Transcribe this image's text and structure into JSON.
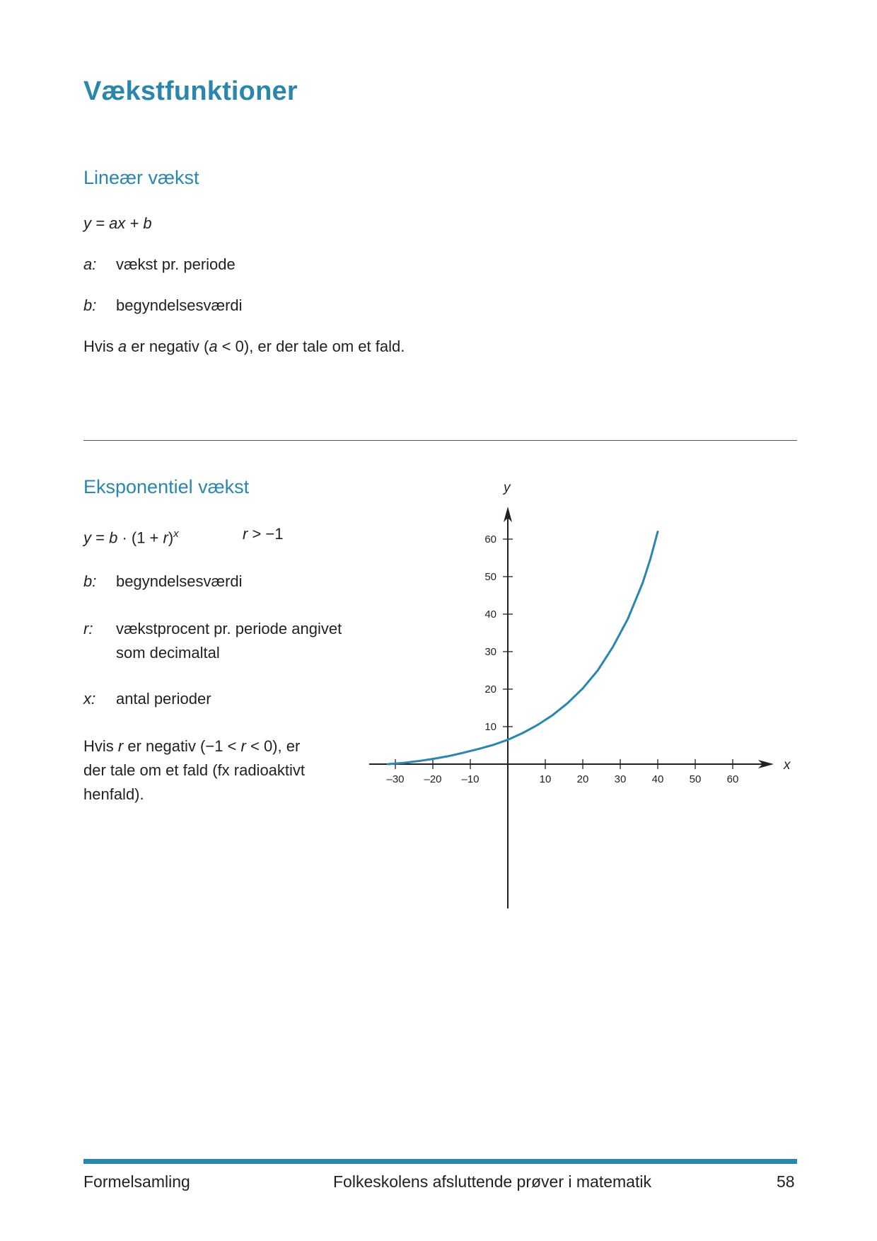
{
  "page": {
    "title": "Vækstfunktioner",
    "footer_left": "Formelsamling",
    "footer_center": "Folkeskolens afsluttende prøver i matematik",
    "footer_page": "58",
    "accent_color": "#2a86ad"
  },
  "linear": {
    "heading": "Lineær vækst",
    "formula": "y = ax + b",
    "defs": [
      {
        "term": "a:",
        "desc": "vækst pr. periode"
      },
      {
        "term": "b:",
        "desc": "begyndelsesværdi"
      }
    ],
    "note": {
      "pre": "Hvis ",
      "var": "a",
      "mid": " er negativ (",
      "var2": "a",
      "post": " < 0), er der tale om et fald."
    }
  },
  "exponential": {
    "heading": "Eksponentiel vækst",
    "formula": {
      "y": "y",
      "eq": " = ",
      "b": "b",
      "dot": " · (1 + ",
      "r": "r",
      "close": ")",
      "exp": "x",
      "cond_var": "r",
      "cond": " > −1"
    },
    "defs": [
      {
        "term": "b:",
        "desc": "begyndelsesværdi"
      },
      {
        "term": "r:",
        "desc_line1": "vækstprocent pr. periode angivet",
        "desc_line2": "som decimaltal"
      },
      {
        "term": "x:",
        "desc": "antal perioder"
      }
    ],
    "note": {
      "line1_pre": "Hvis ",
      "line1_var": "r",
      "line1_mid": " er negativ (−1 < ",
      "line1_var2": "r",
      "line1_post": " < 0), er",
      "line2": "der tale om et fald (fx radioaktivt",
      "line3": "henfald)."
    }
  },
  "chart_data": {
    "type": "line",
    "x_axis_label": "x",
    "y_axis_label": "y",
    "x_ticks": [
      -30,
      -20,
      -10,
      10,
      20,
      30,
      40,
      50,
      60
    ],
    "x_tick_labels": [
      "–30",
      "–20",
      "–10",
      "10",
      "20",
      "30",
      "40",
      "50",
      "60"
    ],
    "y_ticks": [
      10,
      20,
      30,
      40,
      50,
      60
    ],
    "y_tick_labels": [
      "10",
      "20",
      "30",
      "40",
      "50",
      "60"
    ],
    "xlim": [
      -37,
      70
    ],
    "ylim": [
      -38,
      70
    ],
    "series": [
      {
        "color": "#2a86ad",
        "x": [
          -32,
          -28,
          -24,
          -20,
          -16,
          -12,
          -8,
          -4,
          0,
          4,
          8,
          12,
          16,
          20,
          24,
          28,
          32,
          36,
          38,
          40
        ],
        "y": [
          0,
          0.3,
          0.8,
          1.4,
          2.1,
          3.0,
          4.0,
          5.1,
          6.5,
          8.3,
          10.5,
          13.1,
          16.3,
          20.2,
          25.0,
          31.2,
          38.7,
          48.4,
          54.6,
          62.0
        ]
      }
    ]
  }
}
